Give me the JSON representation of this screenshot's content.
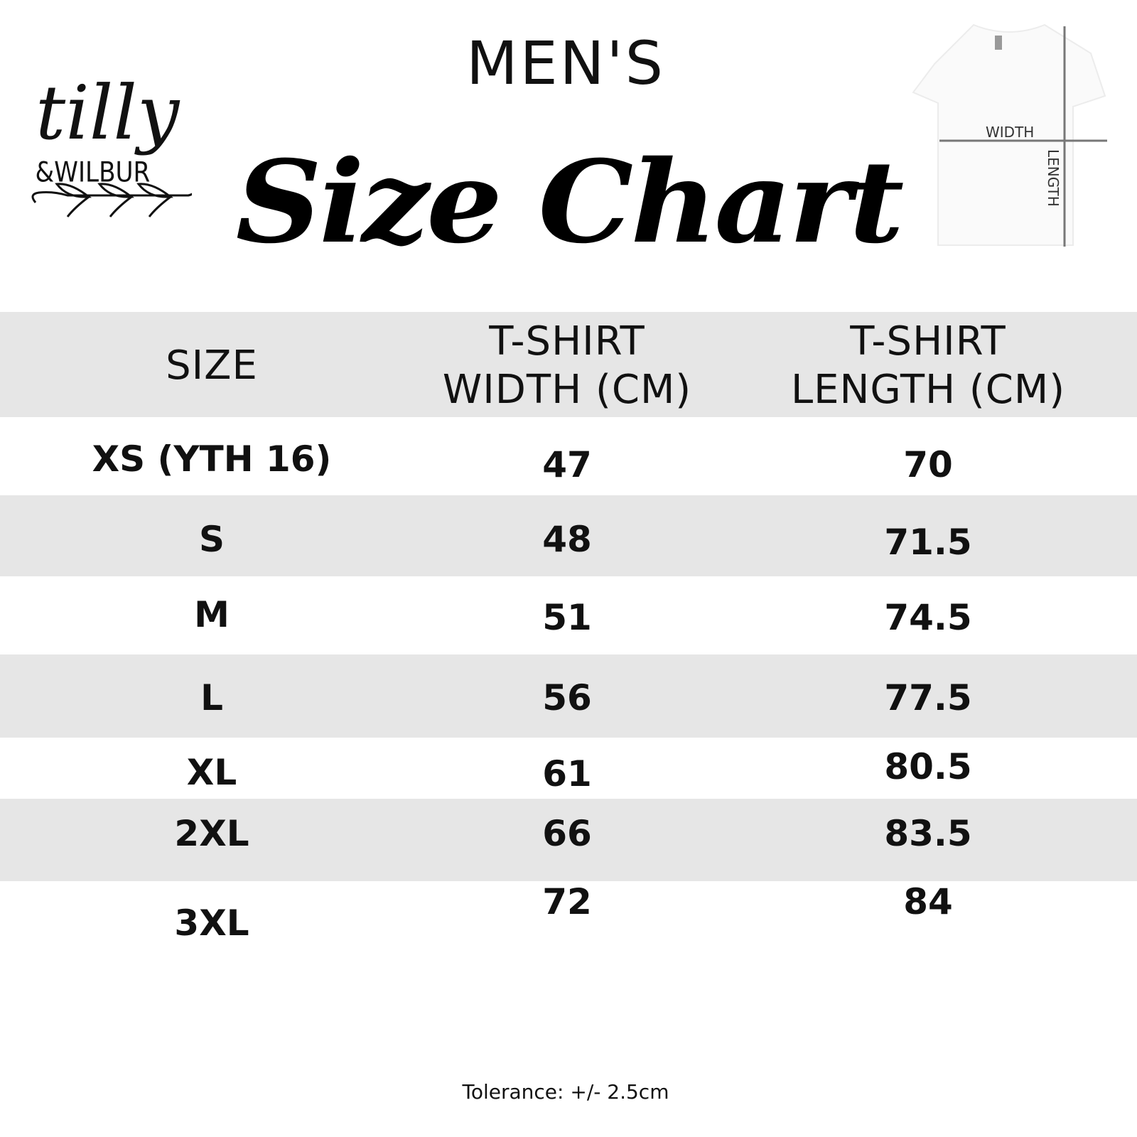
{
  "brand": {
    "logo_text": "tilly & WILBUR"
  },
  "header": {
    "subtitle": "MEN'S",
    "title": "Size Chart"
  },
  "diagram": {
    "width_label": "WIDTH",
    "length_label": "LENGTH"
  },
  "table": {
    "columns": [
      "SIZE",
      "T-SHIRT WIDTH (CM)",
      "T-SHIRT LENGTH (CM)"
    ],
    "column_lines": [
      [
        "SIZE"
      ],
      [
        "T-SHIRT",
        "WIDTH (CM)"
      ],
      [
        "T-SHIRT",
        "LENGTH (CM)"
      ]
    ],
    "rows": [
      [
        "XS (YTH 16)",
        "47",
        "70"
      ],
      [
        "S",
        "48",
        "71.5"
      ],
      [
        "M",
        "51",
        "74.5"
      ],
      [
        "L",
        "56",
        "77.5"
      ],
      [
        "XL",
        "61",
        "80.5"
      ],
      [
        "2XL",
        "66",
        "83.5"
      ],
      [
        "3XL",
        "72",
        "84"
      ]
    ],
    "band_color": "#e6e6e6"
  },
  "footer": {
    "tolerance": "Tolerance: +/- 2.5cm"
  }
}
